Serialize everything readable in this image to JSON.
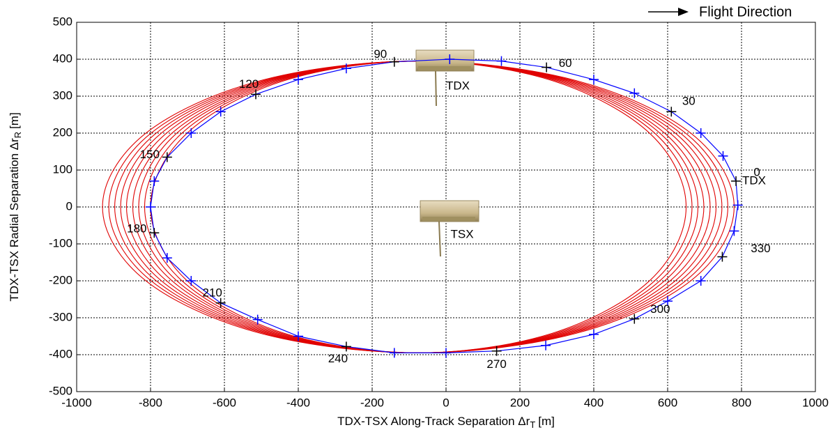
{
  "chart_data": {
    "type": "orbit",
    "xlabel": {
      "text": "TDX-TSX Along-Track Separation Δr",
      "sub": "T",
      "unit": "[m]"
    },
    "ylabel": {
      "text": "TDX-TSX Radial Separation Δr",
      "sub": "R",
      "unit": "[m]"
    },
    "xlim": [
      -1000,
      1000
    ],
    "ylim": [
      -500,
      500
    ],
    "xticks": [
      -1000,
      -800,
      -600,
      -400,
      -200,
      0,
      200,
      400,
      600,
      800,
      1000
    ],
    "yticks": [
      -500,
      -400,
      -300,
      -200,
      -100,
      0,
      100,
      200,
      300,
      400,
      500
    ],
    "grid": true,
    "legend_text": "Flight Direction",
    "annotations": [
      "TDX",
      "TSX",
      "TDX"
    ],
    "drift_orbits": {
      "color": "#e00000",
      "series": [
        {
          "x": [
            650,
            553,
            288,
            -75,
            -438,
            -703,
            -800,
            -703,
            -438,
            -75,
            288,
            553
          ],
          "y": [
            0,
            198,
            342,
            395,
            342,
            198,
            0,
            -198,
            -342,
            -395,
            -342,
            -198
          ]
        },
        {
          "x": [
            666,
            567,
            296,
            -75,
            -446,
            -717,
            -816,
            -717,
            -446,
            -75,
            296,
            567
          ],
          "y": [
            0,
            198,
            342,
            395,
            342,
            198,
            0,
            -198,
            -342,
            -395,
            -342,
            -198
          ]
        },
        {
          "x": [
            682,
            581,
            304,
            -75,
            -454,
            -731,
            -832,
            -731,
            -454,
            -75,
            304,
            581
          ],
          "y": [
            0,
            198,
            342,
            395,
            342,
            198,
            0,
            -198,
            -342,
            -395,
            -342,
            -198
          ]
        },
        {
          "x": [
            698,
            594,
            312,
            -75,
            -462,
            -744,
            -848,
            -744,
            -462,
            -75,
            312,
            594
          ],
          "y": [
            0,
            198,
            342,
            395,
            342,
            198,
            0,
            -198,
            -342,
            -395,
            -342,
            -198
          ]
        },
        {
          "x": [
            715,
            609,
            320,
            -75,
            -470,
            -759,
            -865,
            -759,
            -470,
            -75,
            320,
            609
          ],
          "y": [
            0,
            198,
            342,
            395,
            342,
            198,
            0,
            -198,
            -342,
            -395,
            -342,
            -198
          ]
        },
        {
          "x": [
            731,
            623,
            328,
            -75,
            -478,
            -773,
            -881,
            -773,
            -478,
            -75,
            328,
            623
          ],
          "y": [
            0,
            198,
            342,
            395,
            342,
            198,
            0,
            -198,
            -342,
            -395,
            -342,
            -198
          ]
        },
        {
          "x": [
            747,
            637,
            336,
            -75,
            -486,
            -787,
            -897,
            -787,
            -486,
            -75,
            336,
            637
          ],
          "y": [
            0,
            198,
            342,
            395,
            342,
            198,
            0,
            -198,
            -342,
            -395,
            -342,
            -198
          ]
        },
        {
          "x": [
            763,
            651,
            344,
            -75,
            -494,
            -801,
            -913,
            -801,
            -494,
            -75,
            344,
            651
          ],
          "y": [
            0,
            198,
            342,
            395,
            342,
            198,
            0,
            -198,
            -342,
            -395,
            -342,
            -198
          ]
        },
        {
          "x": [
            780,
            665,
            353,
            -75,
            -503,
            -815,
            -930,
            -815,
            -503,
            -75,
            353,
            665
          ],
          "y": [
            0,
            198,
            342,
            395,
            342,
            198,
            0,
            -198,
            -342,
            -395,
            -342,
            -198
          ]
        }
      ]
    },
    "reference_orbit": {
      "color": "#0000ff",
      "angle_markers": {
        "color": "#000000",
        "labels": [
          "0",
          "30",
          "60",
          "90",
          "120",
          "150",
          "180",
          "210",
          "240",
          "270",
          "300",
          "330"
        ],
        "x": [
          785,
          610,
          272,
          -140,
          -515,
          -755,
          -790,
          -610,
          -270,
          137,
          510,
          748
        ],
        "y": [
          70,
          258,
          378,
          393,
          305,
          135,
          -70,
          -260,
          -378,
          -390,
          -303,
          -135
        ]
      },
      "markers": {
        "color": "#0000ff",
        "x": [
          750,
          690,
          510,
          400,
          150,
          10,
          -270,
          -400,
          -610,
          -690,
          -790,
          -800,
          -755,
          -690,
          -510,
          -400,
          -140,
          0,
          270,
          400,
          600,
          690,
          780,
          790
        ],
        "y": [
          138,
          200,
          308,
          345,
          395,
          400,
          375,
          345,
          258,
          200,
          70,
          0,
          -138,
          -200,
          -305,
          -350,
          -395,
          -395,
          -375,
          -345,
          -255,
          -200,
          -65,
          5
        ]
      }
    }
  }
}
